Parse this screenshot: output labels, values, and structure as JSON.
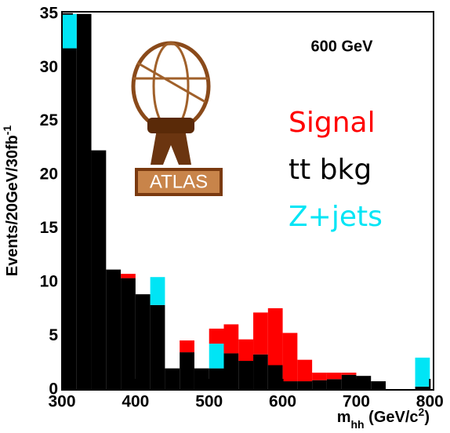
{
  "chart_data": {
    "type": "histogram",
    "stacked": true,
    "annotation": "600 GeV",
    "logo_text": "ATLAS",
    "xlabel": [
      "m",
      "hh",
      " (GeV/c",
      "2",
      ")"
    ],
    "ylabel": [
      "Events/20GeV/30fb",
      "-1"
    ],
    "bins": [
      300,
      320,
      340,
      360,
      380,
      400,
      420,
      440,
      460,
      480,
      500,
      520,
      540,
      560,
      580,
      600,
      620,
      640,
      660,
      680,
      700,
      720,
      740,
      760,
      780,
      800
    ],
    "series": [
      {
        "name": "tt bkg",
        "color": "#000000",
        "values": [
          31.8,
          35,
          22.3,
          11.2,
          10.4,
          8.9,
          7.9,
          2.0,
          3.5,
          2.0,
          2.0,
          3.4,
          2.7,
          3.3,
          2.3,
          0.8,
          0.8,
          0.9,
          1.0,
          1.4,
          1.3,
          0.8,
          0,
          0,
          0.3
        ]
      },
      {
        "name": "Z+jets",
        "color": "#00e5f5",
        "values": [
          3.2,
          0,
          0,
          0,
          0,
          0,
          2.6,
          0,
          0,
          0,
          2.3,
          0,
          0,
          0,
          0,
          0,
          0,
          0,
          0,
          0,
          0,
          0,
          0,
          0,
          2.7
        ]
      },
      {
        "name": "Signal",
        "color": "#ff0000",
        "values": [
          0,
          0,
          0,
          0,
          0.4,
          0,
          0,
          0,
          1.1,
          0,
          1.4,
          2.7,
          2.0,
          3.9,
          5.3,
          4.5,
          2.0,
          0.7,
          0.6,
          0.2,
          0,
          0,
          0,
          0,
          0
        ]
      }
    ],
    "legend_order": [
      2,
      0,
      1
    ],
    "xlim": [
      300,
      805
    ],
    "ylim": [
      0,
      35.2
    ],
    "xticks": [
      300,
      400,
      500,
      600,
      700,
      800
    ],
    "yticks": [
      0,
      5,
      10,
      15,
      20,
      25,
      30,
      35
    ]
  }
}
